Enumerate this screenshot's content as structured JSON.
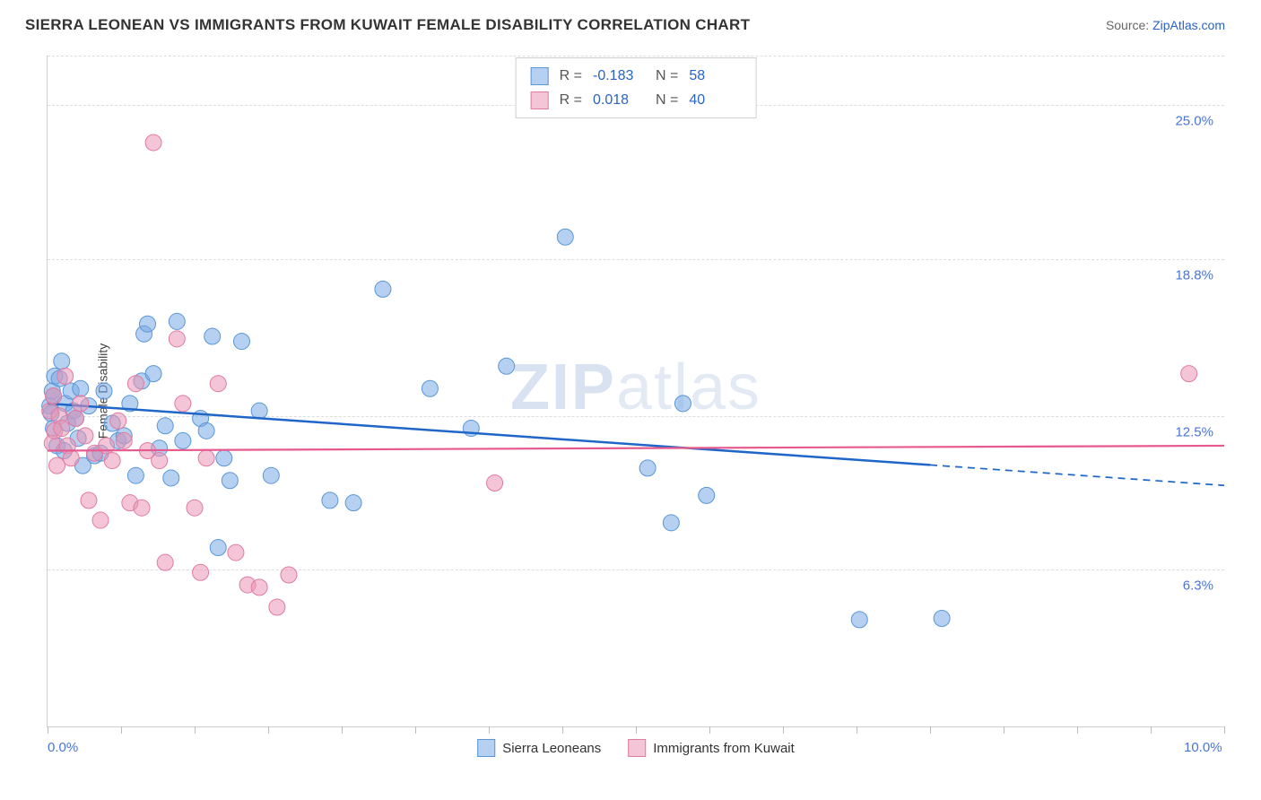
{
  "header": {
    "title": "SIERRA LEONEAN VS IMMIGRANTS FROM KUWAIT FEMALE DISABILITY CORRELATION CHART",
    "source_prefix": "Source: ",
    "source_name": "ZipAtlas.com"
  },
  "chart": {
    "type": "scatter",
    "ylabel": "Female Disability",
    "watermark_a": "ZIP",
    "watermark_b": "atlas",
    "background_color": "#ffffff",
    "grid_color": "#dddddd",
    "axis_color": "#cfcfcf",
    "y": {
      "min": 0.0,
      "max": 27.0,
      "ticks": [
        6.3,
        12.5,
        18.8,
        25.0
      ],
      "tick_labels": [
        "6.3%",
        "12.5%",
        "18.8%",
        "25.0%"
      ]
    },
    "x": {
      "min": 0.0,
      "max": 10.0,
      "minor_step": 0.625,
      "labels": [
        {
          "v": 0.0,
          "text": "0.0%"
        },
        {
          "v": 10.0,
          "text": "10.0%"
        }
      ]
    },
    "series": [
      {
        "name": "Sierra Leoneans",
        "color_fill": "rgba(120,170,230,0.55)",
        "color_stroke": "#5a97d6",
        "marker_radius": 9,
        "trend": {
          "color": "#1f66c8",
          "width": 2.5,
          "y_at_xmin": 13.0,
          "y_at_xmax": 9.7,
          "solid_until_x": 7.5
        },
        "R": "-0.183",
        "N": "58",
        "points": [
          [
            0.02,
            12.9
          ],
          [
            0.03,
            12.6
          ],
          [
            0.04,
            13.5
          ],
          [
            0.05,
            12.0
          ],
          [
            0.05,
            13.3
          ],
          [
            0.06,
            14.1
          ],
          [
            0.08,
            11.3
          ],
          [
            0.1,
            14.0
          ],
          [
            0.12,
            14.7
          ],
          [
            0.14,
            11.1
          ],
          [
            0.15,
            13.0
          ],
          [
            0.17,
            12.2
          ],
          [
            0.2,
            13.5
          ],
          [
            0.22,
            12.7
          ],
          [
            0.24,
            12.4
          ],
          [
            0.26,
            11.6
          ],
          [
            0.28,
            13.6
          ],
          [
            0.3,
            10.5
          ],
          [
            0.35,
            12.9
          ],
          [
            0.4,
            10.9
          ],
          [
            0.45,
            11.0
          ],
          [
            0.48,
            13.5
          ],
          [
            0.55,
            12.2
          ],
          [
            0.6,
            11.5
          ],
          [
            0.65,
            11.7
          ],
          [
            0.7,
            13.0
          ],
          [
            0.75,
            10.1
          ],
          [
            0.8,
            13.9
          ],
          [
            0.82,
            15.8
          ],
          [
            0.85,
            16.2
          ],
          [
            0.9,
            14.2
          ],
          [
            0.95,
            11.2
          ],
          [
            1.0,
            12.1
          ],
          [
            1.05,
            10.0
          ],
          [
            1.1,
            16.3
          ],
          [
            1.15,
            11.5
          ],
          [
            1.3,
            12.4
          ],
          [
            1.35,
            11.9
          ],
          [
            1.4,
            15.7
          ],
          [
            1.45,
            7.2
          ],
          [
            1.5,
            10.8
          ],
          [
            1.55,
            9.9
          ],
          [
            1.65,
            15.5
          ],
          [
            1.8,
            12.7
          ],
          [
            1.9,
            10.1
          ],
          [
            2.4,
            9.1
          ],
          [
            2.6,
            9.0
          ],
          [
            2.85,
            17.6
          ],
          [
            3.25,
            13.6
          ],
          [
            3.6,
            12.0
          ],
          [
            3.9,
            14.5
          ],
          [
            4.4,
            19.7
          ],
          [
            5.1,
            10.4
          ],
          [
            5.3,
            8.2
          ],
          [
            5.4,
            13.0
          ],
          [
            5.6,
            9.3
          ],
          [
            6.9,
            4.3
          ],
          [
            7.6,
            4.35
          ]
        ]
      },
      {
        "name": "Immigrants from Kuwait",
        "color_fill": "rgba(235,150,180,0.55)",
        "color_stroke": "#e07ba1",
        "marker_radius": 9,
        "trend": {
          "color": "#e65a8e",
          "width": 2.2,
          "y_at_xmin": 11.1,
          "y_at_xmax": 11.3,
          "solid_until_x": 10.0
        },
        "R": "0.018",
        "N": "40",
        "points": [
          [
            0.02,
            12.7
          ],
          [
            0.04,
            11.4
          ],
          [
            0.05,
            13.3
          ],
          [
            0.06,
            11.9
          ],
          [
            0.08,
            10.5
          ],
          [
            0.1,
            12.5
          ],
          [
            0.12,
            12.0
          ],
          [
            0.15,
            14.1
          ],
          [
            0.17,
            11.3
          ],
          [
            0.2,
            10.8
          ],
          [
            0.24,
            12.4
          ],
          [
            0.28,
            13.0
          ],
          [
            0.32,
            11.7
          ],
          [
            0.35,
            9.1
          ],
          [
            0.4,
            11.0
          ],
          [
            0.45,
            8.3
          ],
          [
            0.5,
            11.3
          ],
          [
            0.55,
            10.7
          ],
          [
            0.6,
            12.3
          ],
          [
            0.65,
            11.5
          ],
          [
            0.7,
            9.0
          ],
          [
            0.75,
            13.8
          ],
          [
            0.8,
            8.8
          ],
          [
            0.85,
            11.1
          ],
          [
            0.9,
            23.5
          ],
          [
            0.95,
            10.7
          ],
          [
            1.0,
            6.6
          ],
          [
            1.1,
            15.6
          ],
          [
            1.15,
            13.0
          ],
          [
            1.25,
            8.8
          ],
          [
            1.3,
            6.2
          ],
          [
            1.35,
            10.8
          ],
          [
            1.45,
            13.8
          ],
          [
            1.6,
            7.0
          ],
          [
            1.7,
            5.7
          ],
          [
            1.8,
            5.6
          ],
          [
            1.95,
            4.8
          ],
          [
            2.05,
            6.1
          ],
          [
            3.8,
            9.8
          ],
          [
            9.7,
            14.2
          ]
        ]
      }
    ],
    "stats_box": {
      "rows": [
        {
          "swatch_fill": "rgba(120,170,230,0.55)",
          "swatch_stroke": "#5a97d6",
          "r_label": "R =",
          "r_val": "-0.183",
          "n_label": "N =",
          "n_val": "58"
        },
        {
          "swatch_fill": "rgba(235,150,180,0.55)",
          "swatch_stroke": "#e07ba1",
          "r_label": "R =",
          "r_val": "0.018",
          "n_label": "N =",
          "n_val": "40"
        }
      ]
    },
    "legend": [
      {
        "swatch_fill": "rgba(120,170,230,0.55)",
        "swatch_stroke": "#5a97d6",
        "label": "Sierra Leoneans"
      },
      {
        "swatch_fill": "rgba(235,150,180,0.55)",
        "swatch_stroke": "#e07ba1",
        "label": "Immigrants from Kuwait"
      }
    ]
  }
}
